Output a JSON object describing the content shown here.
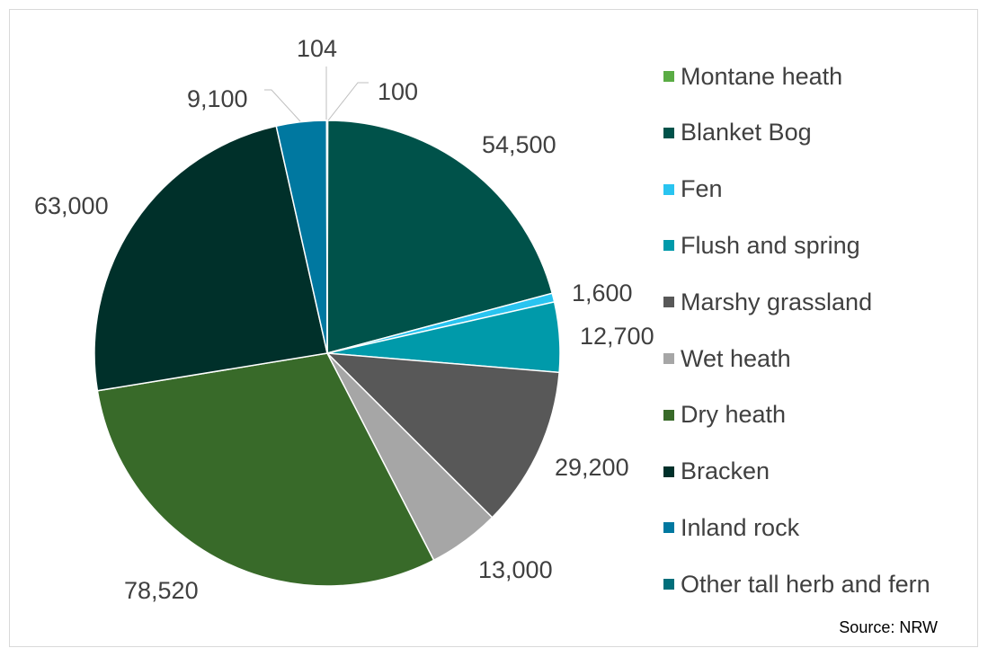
{
  "chart_data": {
    "type": "pie",
    "source_label": "Source: NRW",
    "slices": [
      {
        "label": "Montane heath",
        "value": 100,
        "value_label": "100",
        "color": "#5aac44"
      },
      {
        "label": "Blanket Bog",
        "value": 54500,
        "value_label": "54,500",
        "color": "#00524a"
      },
      {
        "label": "Fen",
        "value": 1600,
        "value_label": "1,600",
        "color": "#29c4f0"
      },
      {
        "label": "Flush and spring",
        "value": 12700,
        "value_label": "12,700",
        "color": "#009aaa"
      },
      {
        "label": "Marshy grassland",
        "value": 29200,
        "value_label": "29,200",
        "color": "#585858"
      },
      {
        "label": "Wet heath",
        "value": 13000,
        "value_label": "13,000",
        "color": "#a6a6a6"
      },
      {
        "label": "Dry heath",
        "value": 78520,
        "value_label": "78,520",
        "color": "#386a29"
      },
      {
        "label": "Bracken",
        "value": 63000,
        "value_label": "63,000",
        "color": "#00302a"
      },
      {
        "label": "Inland rock",
        "value": 9100,
        "value_label": "9,100",
        "color": "#0078a0"
      },
      {
        "label": "Other tall herb and fern",
        "value": 104,
        "value_label": "104",
        "color": "#006e7a"
      }
    ],
    "legend_position": "right"
  }
}
